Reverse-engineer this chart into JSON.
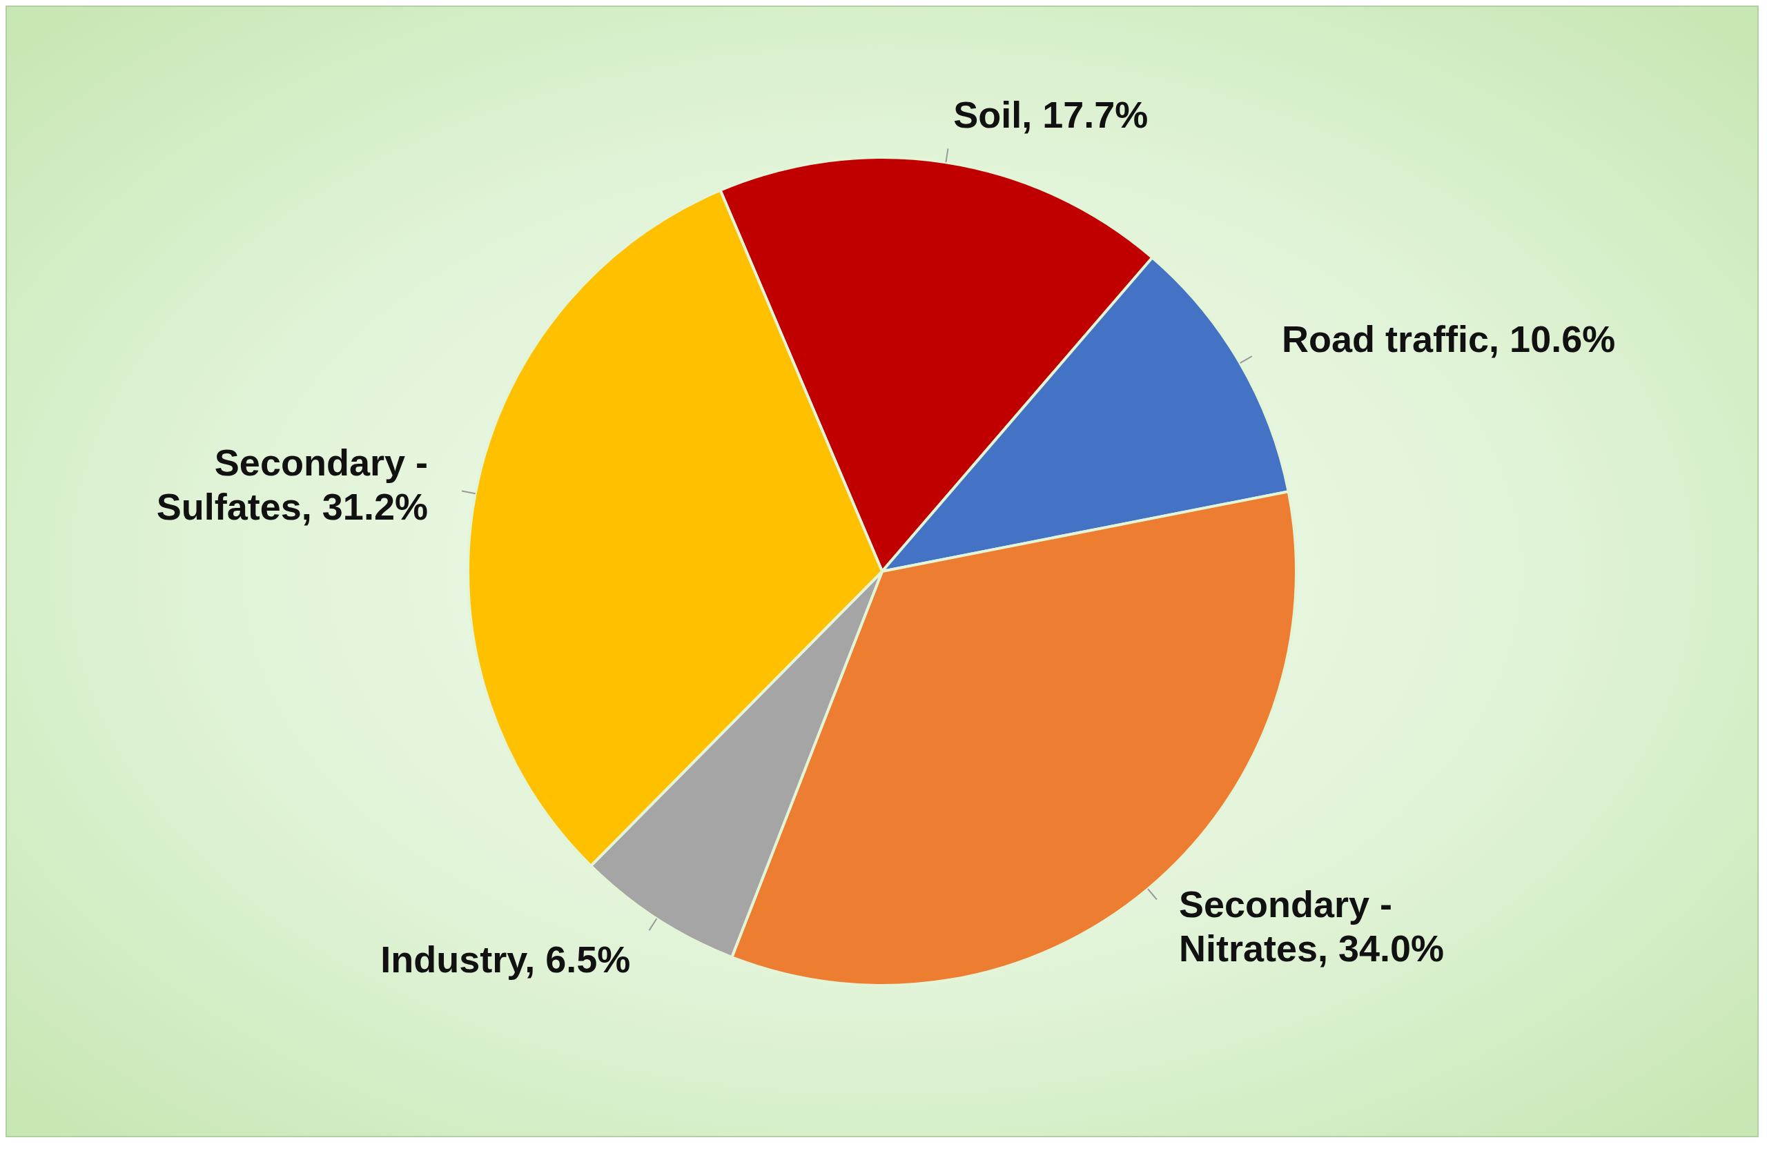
{
  "chart_data": {
    "type": "pie",
    "categories": [
      "Soil",
      "Road traffic",
      "Secondary - Nitrates",
      "Industry",
      "Secondary - Sulfates"
    ],
    "values": [
      17.7,
      10.6,
      34.0,
      6.5,
      31.2
    ],
    "colors": [
      "#c00000",
      "#4472c4",
      "#ed7d31",
      "#a5a5a5",
      "#ffc000"
    ],
    "value_labels": [
      ", 17.7%",
      ", 10.6%",
      ", 34.0%",
      ", 6.5%",
      ", 31.2%"
    ]
  }
}
